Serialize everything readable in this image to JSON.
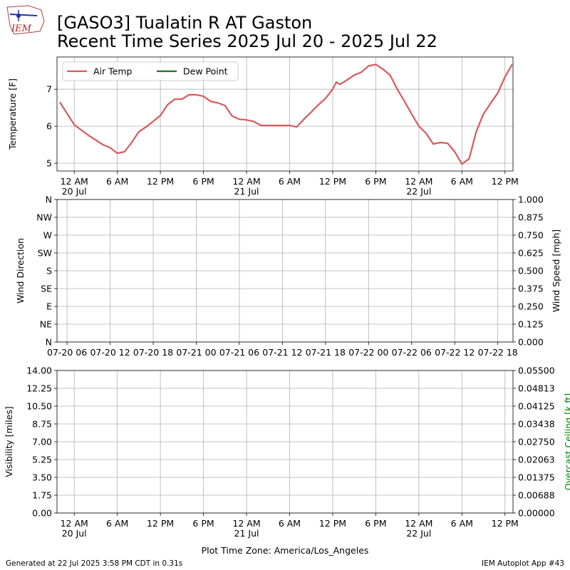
{
  "header": {
    "title": [
      "[GASO3] Tualatin R  AT Gaston",
      "Recent Time Series 2025 Jul 20 - 2025 Jul 22"
    ]
  },
  "footer": {
    "left": "Generated at 22 Jul 2025 3:58 PM CDT in 0.31s",
    "right": "IEM Autoplot App #43"
  },
  "chart_data": [
    {
      "type": "line",
      "ylabel": "Temperature [F]",
      "legend": "upper left",
      "xlim": [
        "07-19 21:36",
        "07-22 13:07"
      ],
      "ylim": [
        4.79,
        7.87
      ],
      "yticks": [
        5,
        6,
        7
      ],
      "grid": true,
      "xticks": [
        {
          "value": "07-20 00:00",
          "label": "12 AM\n20 Jul"
        },
        {
          "value": "07-20 06:00",
          "label": "6 AM"
        },
        {
          "value": "07-20 12:00",
          "label": "12 PM"
        },
        {
          "value": "07-20 18:00",
          "label": "6 PM"
        },
        {
          "value": "07-21 00:00",
          "label": "12 AM\n21 Jul"
        },
        {
          "value": "07-21 06:00",
          "label": "6 AM"
        },
        {
          "value": "07-21 12:00",
          "label": "12 PM"
        },
        {
          "value": "07-21 18:00",
          "label": "6 PM"
        },
        {
          "value": "07-22 00:00",
          "label": "12 AM\n22 Jul"
        },
        {
          "value": "07-22 06:00",
          "label": "6 AM"
        },
        {
          "value": "07-22 12:00",
          "label": "12 PM"
        }
      ],
      "x": [
        "07-19 22:00",
        "07-20 00:00",
        "07-20 02:00",
        "07-20 04:00",
        "07-20 05:00",
        "07-20 06:00",
        "07-20 07:00",
        "07-20 08:00",
        "07-20 09:00",
        "07-20 10:00",
        "07-20 11:00",
        "07-20 12:00",
        "07-20 13:00",
        "07-20 14:00",
        "07-20 15:00",
        "07-20 16:00",
        "07-20 17:00",
        "07-20 18:00",
        "07-20 19:00",
        "07-20 20:00",
        "07-20 21:00",
        "07-20 22:00",
        "07-20 23:00",
        "07-21 00:00",
        "07-21 01:00",
        "07-21 02:00",
        "07-21 03:00",
        "07-21 04:00",
        "07-21 05:00",
        "07-21 06:00",
        "07-21 07:00",
        "07-21 08:00",
        "07-21 09:00",
        "07-21 10:00",
        "07-21 11:00",
        "07-21 12:00",
        "07-21 12:30",
        "07-21 13:00",
        "07-21 14:00",
        "07-21 15:00",
        "07-21 16:00",
        "07-21 17:00",
        "07-21 18:00",
        "07-21 19:00",
        "07-21 20:00",
        "07-21 21:00",
        "07-21 22:00",
        "07-21 23:00",
        "07-22 00:00",
        "07-22 01:00",
        "07-22 02:00",
        "07-22 03:00",
        "07-22 04:00",
        "07-22 05:00",
        "07-22 06:00",
        "07-22 07:00",
        "07-22 08:00",
        "07-22 09:00",
        "07-22 10:00",
        "07-22 11:00",
        "07-22 12:00",
        "07-22 13:00"
      ],
      "series": [
        {
          "name": "Air Temp",
          "color": "#d9595c",
          "values": [
            6.65,
            6.04,
            5.75,
            5.5,
            5.42,
            5.27,
            5.31,
            5.56,
            5.85,
            5.98,
            6.13,
            6.29,
            6.58,
            6.73,
            6.73,
            6.85,
            6.85,
            6.81,
            6.67,
            6.63,
            6.56,
            6.27,
            6.19,
            6.17,
            6.13,
            6.02,
            6.02,
            6.02,
            6.02,
            6.02,
            5.98,
            6.19,
            6.38,
            6.58,
            6.75,
            7.0,
            7.19,
            7.13,
            7.25,
            7.38,
            7.46,
            7.63,
            7.67,
            7.54,
            7.38,
            7.0,
            6.67,
            6.33,
            6.0,
            5.81,
            5.52,
            5.56,
            5.54,
            5.31,
            4.98,
            5.12,
            5.85,
            6.33,
            6.62,
            6.9,
            7.33,
            7.67
          ]
        },
        {
          "name": "Dew Point",
          "color": "#2e6b2e",
          "values": [
            null,
            null,
            null,
            null,
            null,
            null,
            null,
            null,
            null,
            null,
            null,
            null,
            null,
            null,
            null,
            null,
            null,
            null,
            null,
            null,
            null,
            null,
            null,
            null,
            null,
            null,
            null,
            null,
            null,
            null,
            null,
            null,
            null,
            null,
            null,
            null,
            null,
            null,
            null,
            null,
            null,
            null,
            null,
            null,
            null,
            null,
            null,
            null,
            null,
            null,
            null,
            null,
            null,
            null,
            null,
            null,
            null,
            null,
            null,
            null,
            null,
            null
          ]
        }
      ]
    },
    {
      "type": "line",
      "ylabel": "Wind Direction",
      "y2label": "Wind Speed [mph]",
      "grid": true,
      "xlim": [
        "07-20 04:36",
        "07-22 20:07"
      ],
      "xticks": [
        "07-20 06",
        "07-20 12",
        "07-20 18",
        "07-21 00",
        "07-21 06",
        "07-21 12",
        "07-21 18",
        "07-22 00",
        "07-22 06",
        "07-22 12",
        "07-22 18"
      ],
      "ylim": [
        0,
        360
      ],
      "yticks": [
        {
          "value": 0,
          "label": "N"
        },
        {
          "value": 45,
          "label": "NE"
        },
        {
          "value": 90,
          "label": "E"
        },
        {
          "value": 135,
          "label": "SE"
        },
        {
          "value": 180,
          "label": "S"
        },
        {
          "value": 225,
          "label": "SW"
        },
        {
          "value": 270,
          "label": "W"
        },
        {
          "value": 315,
          "label": "NW"
        },
        {
          "value": 360,
          "label": "N"
        }
      ],
      "y2lim": [
        0,
        1
      ],
      "y2ticks": [
        {
          "value": 0,
          "label": "0.000"
        },
        0.125,
        {
          "value": 0.25,
          "label": "0.250"
        },
        0.375,
        {
          "value": 0.5,
          "label": "0.500"
        },
        0.625,
        {
          "value": 0.75,
          "label": "0.750"
        },
        0.875,
        {
          "value": 1,
          "label": "1.000"
        }
      ]
    },
    {
      "type": "line",
      "ylabel": "Visibility [miles]",
      "y2label": "Overcast Ceiling [k ft]",
      "y2label_color": "#008000",
      "grid": true,
      "xlabel": "Plot Time Zone: America/Los_Angeles",
      "xlim": [
        "07-19 21:36",
        "07-22 13:07"
      ],
      "xticks": [
        {
          "value": "07-20 00:00",
          "label": "12 AM\n20 Jul"
        },
        {
          "value": "07-20 06:00",
          "label": "6 AM"
        },
        {
          "value": "07-20 12:00",
          "label": "12 PM"
        },
        {
          "value": "07-20 18:00",
          "label": "6 PM"
        },
        {
          "value": "07-21 00:00",
          "label": "12 AM\n21 Jul"
        },
        {
          "value": "07-21 06:00",
          "label": "6 AM"
        },
        {
          "value": "07-21 12:00",
          "label": "12 PM"
        },
        {
          "value": "07-21 18:00",
          "label": "6 PM"
        },
        {
          "value": "07-22 00:00",
          "label": "12 AM\n22 Jul"
        },
        {
          "value": "07-22 06:00",
          "label": "6 AM"
        },
        {
          "value": "07-22 12:00",
          "label": "12 PM"
        }
      ],
      "ylim": [
        0,
        14
      ],
      "yticks": [
        {
          "value": 0,
          "label": "0.00"
        },
        1.75,
        {
          "value": 3.5,
          "label": "3.50"
        },
        5.25,
        {
          "value": 7,
          "label": "7.00"
        },
        8.75,
        {
          "value": 10.5,
          "label": "10.50"
        },
        12.25,
        {
          "value": 14,
          "label": "14.00"
        }
      ],
      "y2lim": [
        0,
        0.055
      ],
      "y2ticks": [
        {
          "value": 0,
          "label": "0.00000"
        },
        {
          "value": 0.006875,
          "label": "0.00688"
        },
        {
          "value": 0.01375,
          "label": "0.01375"
        },
        {
          "value": 0.020625,
          "label": "0.02063"
        },
        {
          "value": 0.0275,
          "label": "0.02750"
        },
        {
          "value": 0.034375,
          "label": "0.03438"
        },
        {
          "value": 0.04125,
          "label": "0.04125"
        },
        {
          "value": 0.048125,
          "label": "0.04813"
        },
        {
          "value": 0.055,
          "label": "0.05500"
        }
      ]
    }
  ]
}
